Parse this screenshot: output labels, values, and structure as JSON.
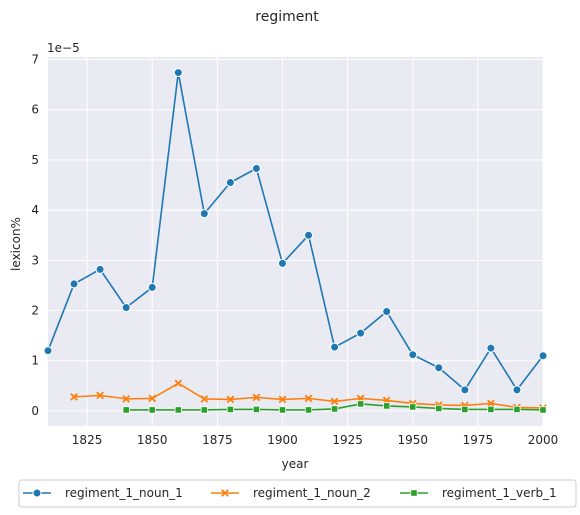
{
  "chart_data": {
    "type": "line",
    "title": "regiment",
    "xlabel": "year",
    "ylabel": "lexicon%",
    "y_multiplier_label": "1e−5",
    "xlim": [
      1810,
      2000
    ],
    "ylim": [
      -0.3,
      7.05
    ],
    "x_ticks": [
      1825,
      1850,
      1875,
      1900,
      1925,
      1950,
      1975,
      2000
    ],
    "y_ticks": [
      0,
      1,
      2,
      3,
      4,
      5,
      6,
      7
    ],
    "grid": true,
    "legend_position": "bottom",
    "series": [
      {
        "name": "regiment_1_noun_1",
        "color": "#1f77b4",
        "marker": "circle",
        "x": [
          1810,
          1820,
          1830,
          1840,
          1850,
          1860,
          1870,
          1880,
          1890,
          1900,
          1910,
          1920,
          1930,
          1940,
          1950,
          1960,
          1970,
          1980,
          1990,
          2000
        ],
        "y": [
          1.2,
          2.53,
          2.82,
          2.06,
          2.46,
          6.74,
          3.93,
          4.55,
          4.83,
          2.94,
          3.5,
          1.27,
          1.55,
          1.98,
          1.12,
          0.86,
          0.42,
          1.25,
          0.42,
          1.1
        ]
      },
      {
        "name": "regiment_1_noun_2",
        "color": "#ff7f0e",
        "marker": "x",
        "x": [
          1820,
          1830,
          1840,
          1850,
          1860,
          1870,
          1880,
          1890,
          1900,
          1910,
          1920,
          1930,
          1940,
          1950,
          1960,
          1970,
          1980,
          1990,
          2000
        ],
        "y": [
          0.28,
          0.31,
          0.24,
          0.25,
          0.55,
          0.24,
          0.23,
          0.27,
          0.23,
          0.25,
          0.19,
          0.25,
          0.21,
          0.15,
          0.12,
          0.11,
          0.15,
          0.07,
          0.06
        ]
      },
      {
        "name": "regiment_1_verb_1",
        "color": "#2ca02c",
        "marker": "square",
        "x": [
          1840,
          1850,
          1860,
          1870,
          1880,
          1890,
          1900,
          1910,
          1920,
          1930,
          1940,
          1950,
          1960,
          1970,
          1980,
          1990,
          2000
        ],
        "y": [
          0.02,
          0.02,
          0.02,
          0.02,
          0.03,
          0.03,
          0.02,
          0.02,
          0.04,
          0.14,
          0.1,
          0.08,
          0.05,
          0.03,
          0.03,
          0.03,
          0.02
        ]
      }
    ]
  }
}
